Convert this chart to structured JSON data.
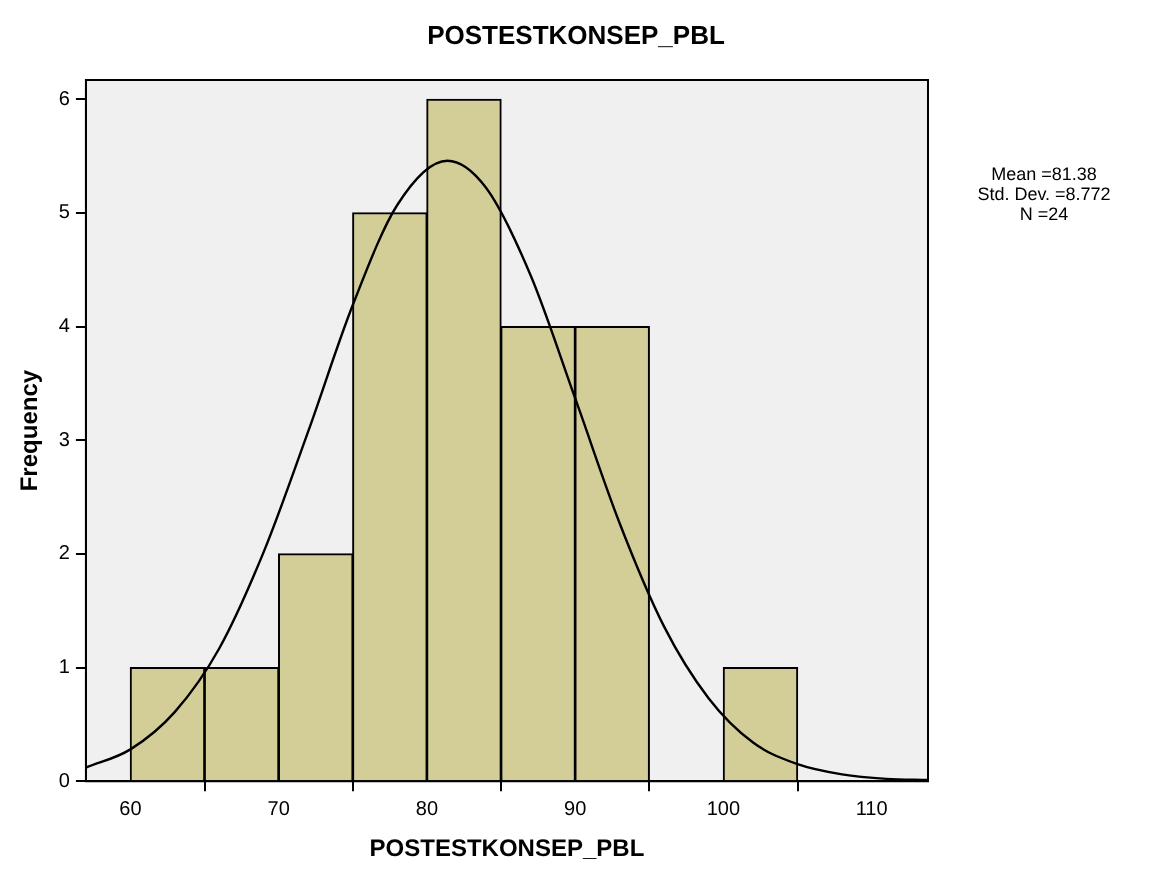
{
  "chart_data": {
    "type": "histogram",
    "title": "POSTESTKONSEP_PBL",
    "xlabel": "POSTESTKONSEP_PBL",
    "ylabel": "Frequency",
    "bins": [
      60,
      65,
      70,
      75,
      80,
      85,
      90,
      95,
      100,
      105
    ],
    "values": [
      1,
      1,
      2,
      5,
      6,
      4,
      4,
      0,
      1
    ],
    "color": "#d3ce97",
    "series": [
      {
        "type": "line",
        "color": "#000000",
        "x": [
          57,
          60,
          63,
          66,
          69,
          72,
          75,
          78,
          81.38,
          84,
          87,
          90,
          93,
          96,
          99,
          102,
          105,
          108,
          111,
          113.8
        ],
        "values": [
          0.12,
          0.28,
          0.61,
          1.17,
          2.02,
          3.08,
          4.19,
          5.07,
          5.46,
          5.22,
          4.45,
          3.37,
          2.27,
          1.36,
          0.73,
          0.34,
          0.15,
          0.06,
          0.02,
          0.01
        ]
      }
    ],
    "marker": "none",
    "xlim": [
      57,
      113.8
    ],
    "xticks": [
      60,
      70,
      80,
      90,
      100,
      110
    ],
    "ylim": [
      0,
      6.17
    ],
    "yticks": [
      0,
      1,
      2,
      3,
      4,
      5,
      6
    ],
    "grid": false,
    "legend": false,
    "annotations": [
      "Mean =81.38",
      "Std. Dev. =8.772",
      "N =24"
    ]
  }
}
